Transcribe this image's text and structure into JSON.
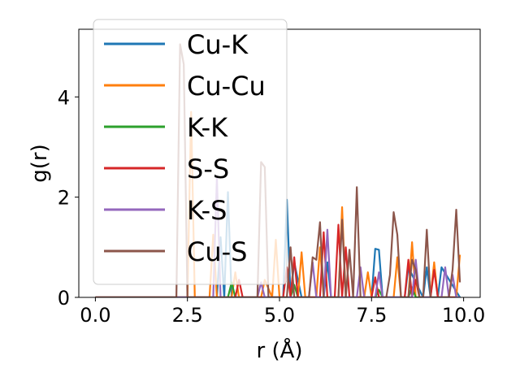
{
  "chart_data": {
    "type": "line",
    "title": "",
    "xlabel": "r (Å)",
    "ylabel": "g(r)",
    "xlim": [
      -0.45,
      10.45
    ],
    "ylim": [
      0,
      5.35
    ],
    "xticks": [
      0.0,
      2.5,
      5.0,
      7.5,
      10.0
    ],
    "xtick_labels": [
      "0.0",
      "2.5",
      "5.0",
      "7.5",
      "10.0"
    ],
    "yticks": [
      0,
      2,
      4
    ],
    "ytick_labels": [
      "0",
      "2",
      "4"
    ],
    "grid": false,
    "legend_position": "top-left",
    "series": [
      {
        "name": "Cu-K",
        "color": "#1f77b4",
        "x": [
          0,
          3.3,
          3.4,
          3.5,
          3.6,
          3.7,
          5.1,
          5.2,
          5.3,
          5.4,
          5.6,
          5.7,
          6.2,
          6.3,
          6.4,
          6.5,
          7.1,
          7.2,
          7.5,
          7.6,
          7.7,
          7.8,
          8.4,
          8.5,
          8.9,
          9.0,
          9.1,
          9.2,
          9.3,
          9.4,
          9.9
        ],
        "y": [
          0,
          0,
          1.2,
          0,
          2.1,
          0,
          0,
          1.95,
          0,
          0.7,
          0,
          0,
          0,
          0.7,
          0,
          0,
          0,
          0,
          0,
          0.97,
          0.95,
          0,
          0,
          0.6,
          0,
          0.6,
          0,
          0.65,
          0,
          0.6,
          0
        ]
      },
      {
        "name": "Cu-Cu",
        "color": "#ff7f0e",
        "x": [
          0,
          2.5,
          2.6,
          2.7,
          2.8,
          3.1,
          3.2,
          3.3,
          3.7,
          3.8,
          3.9,
          4.5,
          4.6,
          4.8,
          4.9,
          5.0,
          5.5,
          5.6,
          5.7,
          6.0,
          6.1,
          6.2,
          6.6,
          6.7,
          6.8,
          7.3,
          7.4,
          7.5,
          8.1,
          8.2,
          8.3,
          8.5,
          8.6,
          8.7,
          9.1,
          9.2,
          9.3,
          9.8,
          9.9
        ],
        "y": [
          0,
          0,
          3.7,
          0,
          0,
          0,
          1.25,
          0,
          0,
          0.5,
          0,
          0,
          0.35,
          0,
          1.15,
          0,
          0,
          0.9,
          0,
          0,
          1.0,
          0,
          0,
          1.8,
          0,
          0,
          0.5,
          0,
          0,
          0.8,
          0,
          0,
          1.1,
          0,
          0,
          0.7,
          0,
          0,
          0.85
        ]
      },
      {
        "name": "K-K",
        "color": "#2ca02c",
        "x": [
          0,
          3.6,
          3.7,
          3.8,
          5.3,
          5.4,
          5.5,
          7.6,
          7.7,
          7.8,
          8.5,
          8.6,
          8.7,
          9.9
        ],
        "y": [
          0,
          0,
          0.3,
          0,
          0,
          0.25,
          0,
          0,
          0.15,
          0,
          0,
          0.2,
          0,
          0
        ]
      },
      {
        "name": "S-S",
        "color": "#d62728",
        "x": [
          0,
          3.8,
          3.9,
          4.0,
          5.1,
          5.2,
          5.3,
          5.4,
          5.5,
          5.7,
          6.1,
          6.2,
          6.3,
          6.5,
          6.6,
          6.7,
          6.8,
          6.9,
          7.5,
          7.6,
          7.7,
          8.4,
          8.5,
          8.6,
          8.7,
          8.8,
          9.1,
          9.2,
          9.3,
          9.9
        ],
        "y": [
          0,
          0,
          0.35,
          0,
          0,
          0.6,
          0,
          0.8,
          0,
          0,
          0,
          1.3,
          0,
          0,
          1.45,
          0,
          1.0,
          0,
          0,
          0.4,
          0,
          0,
          0.75,
          0,
          0.35,
          0,
          0,
          0.55,
          0,
          0
        ]
      },
      {
        "name": "K-S",
        "color": "#9467bd",
        "x": [
          0,
          3.2,
          3.3,
          3.4,
          4.4,
          4.5,
          4.6,
          5.8,
          5.9,
          6.0,
          6.2,
          6.3,
          6.4,
          7.1,
          7.2,
          7.3,
          7.6,
          7.7,
          7.8,
          8.6,
          8.7,
          8.8,
          9.4,
          9.5,
          9.6,
          9.7,
          9.8,
          9.9
        ],
        "y": [
          0,
          0,
          2.4,
          0,
          0,
          0.3,
          0,
          0,
          0.7,
          0,
          0,
          1.35,
          0,
          0,
          0.6,
          0,
          0,
          0.5,
          0,
          0,
          0.75,
          0,
          0,
          0.6,
          0,
          0.45,
          0,
          0
        ]
      },
      {
        "name": "Cu-S",
        "color": "#8c564b",
        "x": [
          0,
          2.2,
          2.3,
          2.4,
          2.5,
          4.4,
          4.5,
          4.6,
          4.7,
          5.2,
          5.3,
          5.4,
          5.8,
          5.9,
          6.0,
          6.1,
          6.2,
          6.6,
          6.7,
          6.8,
          6.9,
          7.0,
          7.1,
          7.2,
          7.9,
          8.0,
          8.1,
          8.2,
          8.3,
          8.5,
          8.6,
          8.7,
          8.8,
          8.9,
          9.0,
          9.1,
          9.6,
          9.7,
          9.8,
          9.9
        ],
        "y": [
          0,
          0,
          5.05,
          4.65,
          0,
          0,
          2.7,
          2.6,
          0,
          0,
          1.0,
          0,
          0,
          0.8,
          0.75,
          1.5,
          0,
          0,
          1.55,
          0,
          0.95,
          0,
          2.2,
          0,
          0,
          0.45,
          1.7,
          1.25,
          0,
          0,
          0.75,
          0.55,
          0,
          0,
          1.35,
          0,
          0,
          0.55,
          1.75,
          0.3
        ]
      }
    ]
  }
}
